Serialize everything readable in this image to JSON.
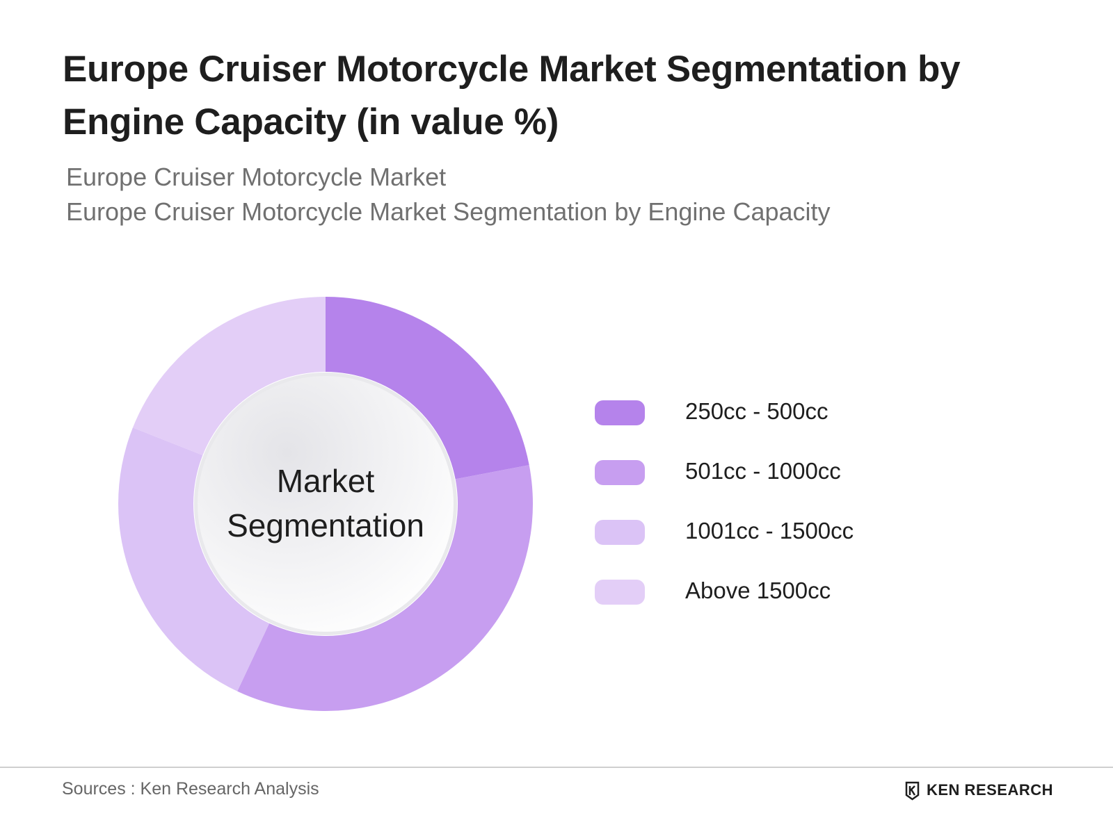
{
  "header": {
    "title": "Europe Cruiser Motorcycle Market Segmentation by Engine Capacity (in value %)",
    "subtitle_1": "Europe Cruiser Motorcycle Market",
    "subtitle_2": "Europe Cruiser Motorcycle Market Segmentation by Engine Capacity"
  },
  "chart_data": {
    "type": "pie",
    "donut": true,
    "center_label": [
      "Market",
      "Segmentation"
    ],
    "categories": [
      "250cc - 500cc",
      "501cc - 1000cc",
      "1001cc - 1500cc",
      "Above 1500cc"
    ],
    "values": [
      22,
      35,
      24,
      19
    ],
    "colors": [
      "#b583eb",
      "#c79ef0",
      "#dbc3f6",
      "#e3cef7"
    ],
    "legend_position": "right"
  },
  "footer": {
    "source": "Sources : Ken Research Analysis",
    "brand": "KEN RESEARCH",
    "brand_icon": "ken-research-logo-icon"
  }
}
